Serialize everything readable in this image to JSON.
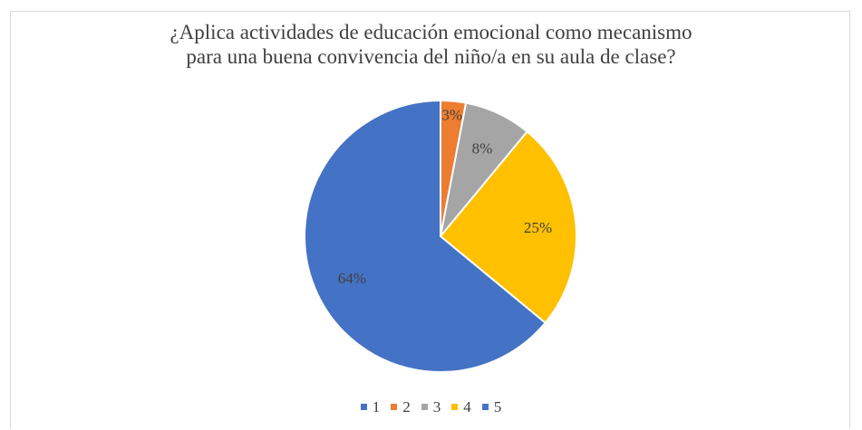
{
  "chart_data": {
    "type": "pie",
    "title": "¿Aplica actividades de educación emocional como mecanismo para una buena convivencia del niño/a en su aula de clase?",
    "title_lines": [
      "¿Aplica actividades de educación emocional como mecanismo",
      "para una buena convivencia del niño/a en su aula de clase?"
    ],
    "categories": [
      "1",
      "2",
      "3",
      "4",
      "5"
    ],
    "values": [
      0,
      3,
      8,
      25,
      64
    ],
    "data_labels": [
      "",
      "3%",
      "8%",
      "25%",
      "64%"
    ],
    "colors": [
      "#4472C4",
      "#ED7D31",
      "#A5A5A5",
      "#FFC000",
      "#4472C4"
    ],
    "legend_position": "bottom"
  }
}
